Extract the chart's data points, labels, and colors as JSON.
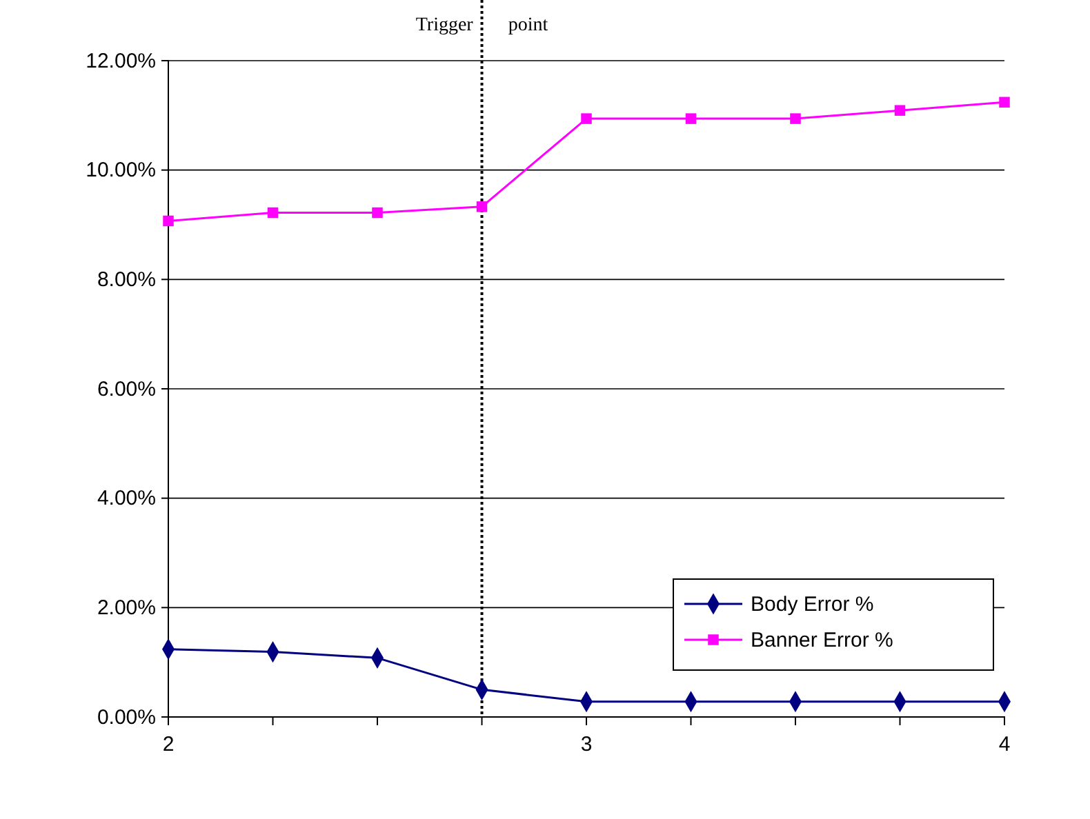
{
  "chart_data": {
    "type": "line",
    "x": [
      2,
      2.25,
      2.5,
      2.75,
      3,
      3.25,
      3.5,
      3.75,
      4
    ],
    "series": [
      {
        "name": "Body Error %",
        "color": "#000080",
        "marker": "diamond",
        "values": [
          1.24,
          1.19,
          1.08,
          0.5,
          0.28,
          0.28,
          0.28,
          0.28,
          0.28
        ]
      },
      {
        "name": "Banner Error %",
        "color": "#ff00ff",
        "marker": "square",
        "values": [
          9.07,
          9.22,
          9.22,
          9.33,
          10.94,
          10.94,
          10.94,
          11.09,
          11.24
        ]
      }
    ],
    "xlim": [
      2,
      4
    ],
    "xticks": [
      2,
      {
        "value": 2.25,
        "label": null
      },
      {
        "value": 2.5,
        "label": null
      },
      {
        "value": 2.75,
        "label": null
      },
      3,
      {
        "value": 3.25,
        "label": null
      },
      {
        "value": 3.5,
        "label": null
      },
      {
        "value": 3.75,
        "label": null
      },
      4
    ],
    "ylim": [
      0,
      12
    ],
    "yticks": [
      {
        "value": 0,
        "label": "0.00%"
      },
      {
        "value": 2,
        "label": "2.00%"
      },
      {
        "value": 4,
        "label": "4.00%"
      },
      {
        "value": 6,
        "label": "6.00%"
      },
      {
        "value": 8,
        "label": "8.00%"
      },
      {
        "value": 10,
        "label": "10.00%"
      },
      {
        "value": 12,
        "label": "12.00%"
      }
    ],
    "grid": "y",
    "legend": "bottom right",
    "line_style": "solid",
    "ref_lines": [
      {
        "axis": "x",
        "value": 2.75,
        "label": "Trigger point",
        "color": "#000000",
        "line_style": "dotted"
      }
    ]
  }
}
